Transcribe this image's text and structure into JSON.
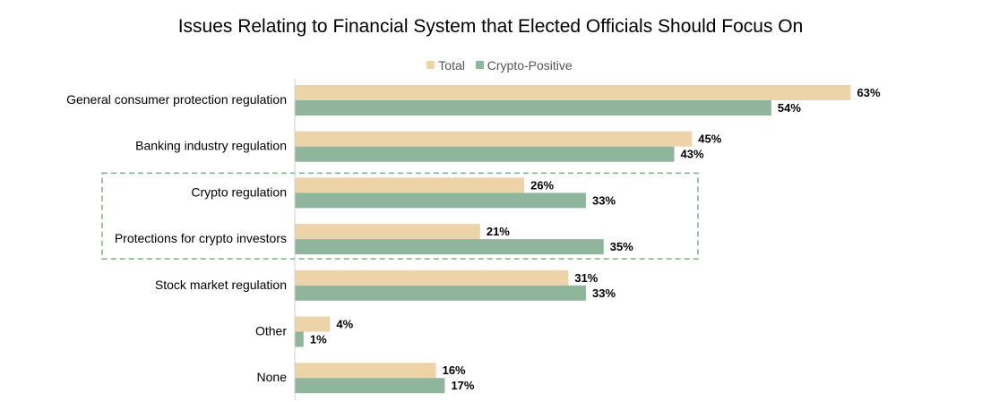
{
  "chart_data": {
    "type": "bar",
    "orientation": "horizontal",
    "title": "Issues Relating to Financial System that Elected Officials Should Focus On",
    "categories": [
      "General consumer protection regulation",
      "Banking industry regulation",
      "Crypto regulation",
      "Protections for crypto investors",
      "Stock market regulation",
      "Other",
      "None"
    ],
    "series": [
      {
        "name": "Total",
        "values": [
          63,
          45,
          26,
          21,
          31,
          4,
          16
        ],
        "labels": [
          "63%",
          "45%",
          "26%",
          "21%",
          "31%",
          "4%",
          "16%"
        ]
      },
      {
        "name": "Crypto-Positive",
        "values": [
          54,
          43,
          33,
          35,
          33,
          1,
          17
        ],
        "labels": [
          "54%",
          "43%",
          "33%",
          "35%",
          "33%",
          "1%",
          "17%"
        ]
      }
    ],
    "xlim": [
      0,
      65
    ],
    "legend_position": "top",
    "grid": false,
    "highlighted_categories": [
      "Crypto regulation",
      "Protections for crypto investors"
    ],
    "colors": {
      "Total": "#ecd3a8",
      "Crypto-Positive": "#8fb59c",
      "highlight_border": "#7eab8f",
      "axis": "#d0d0d0"
    }
  }
}
